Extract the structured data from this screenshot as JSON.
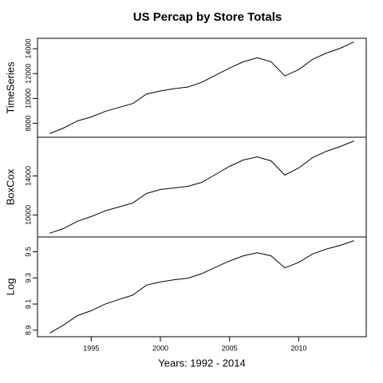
{
  "title": "US Percap by Store Totals",
  "xlabel": "Years: 1992 - 2014",
  "chart_data": [
    {
      "type": "line",
      "ylabel": "TimeSeries",
      "color": "#000000",
      "x": [
        1992,
        1993,
        1994,
        1995,
        1996,
        1997,
        1998,
        1999,
        2000,
        2001,
        2002,
        2003,
        2004,
        2005,
        2006,
        2007,
        2008,
        2009,
        2010,
        2011,
        2012,
        2013,
        2014
      ],
      "values": [
        7175,
        7620,
        8190,
        8510,
        8950,
        9270,
        9590,
        10350,
        10600,
        10790,
        10920,
        11300,
        11870,
        12440,
        12950,
        13270,
        12950,
        11810,
        12320,
        13140,
        13650,
        14030,
        14540
      ],
      "xlim": [
        1991.12,
        2014.88
      ],
      "ylim": [
        6880,
        14835
      ],
      "yticks": [
        8000,
        10000,
        12000,
        14000
      ]
    },
    {
      "type": "line",
      "ylabel": "BoxCox",
      "color": "#000000",
      "x": [
        1992,
        1993,
        1994,
        1995,
        1996,
        1997,
        1998,
        1999,
        2000,
        2001,
        2002,
        2003,
        2004,
        2005,
        2006,
        2007,
        2008,
        2009,
        2010,
        2011,
        2012,
        2013,
        2014
      ],
      "values": [
        8122,
        8612,
        9347,
        9837,
        10408,
        10816,
        11224,
        12204,
        12612,
        12775,
        12939,
        13347,
        14163,
        14980,
        15633,
        15959,
        15551,
        14082,
        14816,
        15877,
        16530,
        17020,
        17592
      ],
      "xlim": [
        1991.12,
        2014.88
      ],
      "ylim": [
        7741,
        17969
      ],
      "yticks": [
        10000,
        14000
      ]
    },
    {
      "type": "line",
      "ylabel": "Log",
      "color": "#000000",
      "x": [
        1992,
        1993,
        1994,
        1995,
        1996,
        1997,
        1998,
        1999,
        2000,
        2001,
        2002,
        2003,
        2004,
        2005,
        2006,
        2007,
        2008,
        2009,
        2010,
        2011,
        2012,
        2013,
        2014
      ],
      "values": [
        8.878,
        8.939,
        9.011,
        9.049,
        9.099,
        9.135,
        9.168,
        9.245,
        9.269,
        9.286,
        9.298,
        9.333,
        9.382,
        9.429,
        9.469,
        9.493,
        9.469,
        9.377,
        9.419,
        9.483,
        9.521,
        9.549,
        9.585
      ],
      "xlim": [
        1991.12,
        2014.88
      ],
      "ylim": [
        8.85,
        9.613
      ],
      "yticks": [
        8.9,
        9.1,
        9.3,
        9.5
      ],
      "xticks": [
        1995,
        2000,
        2005,
        2010
      ]
    }
  ]
}
